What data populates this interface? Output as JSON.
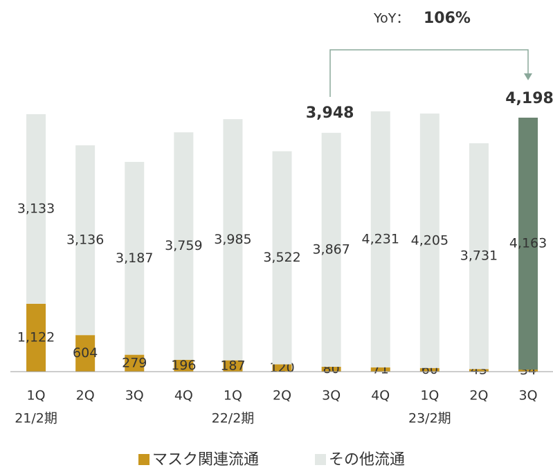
{
  "chart_data": {
    "type": "stacked_bar",
    "categories": [
      "1Q",
      "2Q",
      "3Q",
      "4Q",
      "1Q",
      "2Q",
      "3Q",
      "4Q",
      "1Q",
      "2Q",
      "3Q"
    ],
    "period_labels": [
      "21/2期",
      null,
      null,
      null,
      "22/2期",
      null,
      null,
      null,
      "23/2期",
      null,
      null
    ],
    "series": [
      {
        "name": "マスク関連流通",
        "color": "#c8961e",
        "values": [
          1122,
          604,
          279,
          196,
          187,
          120,
          80,
          71,
          60,
          43,
          34
        ],
        "value_labels": [
          "1,122",
          "604",
          "279",
          "196",
          "187",
          "120",
          "80",
          "71",
          "60",
          "43",
          "34"
        ]
      },
      {
        "name": "その他流通",
        "color": "#e3e8e5",
        "colors": [
          "#e3e8e5",
          "#e3e8e5",
          "#e3e8e5",
          "#e3e8e5",
          "#e3e8e5",
          "#e3e8e5",
          "#e3e8e5",
          "#e3e8e5",
          "#e3e8e5",
          "#e3e8e5",
          "#6b8571"
        ],
        "values": [
          3133,
          3136,
          3187,
          3759,
          3985,
          3522,
          3867,
          4231,
          4205,
          3731,
          4163
        ],
        "value_labels": [
          "3,133",
          "3,136",
          "3,187",
          "3,759",
          "3,985",
          "3,522",
          "3,867",
          "4,231",
          "4,205",
          "3,731",
          "4,163"
        ]
      }
    ],
    "total_labels": [
      null,
      null,
      null,
      null,
      null,
      null,
      "3,948",
      null,
      null,
      null,
      "4,198"
    ],
    "yoy_label": "YoY：",
    "yoy_value": "106%",
    "ylim": [
      0,
      4300
    ]
  }
}
